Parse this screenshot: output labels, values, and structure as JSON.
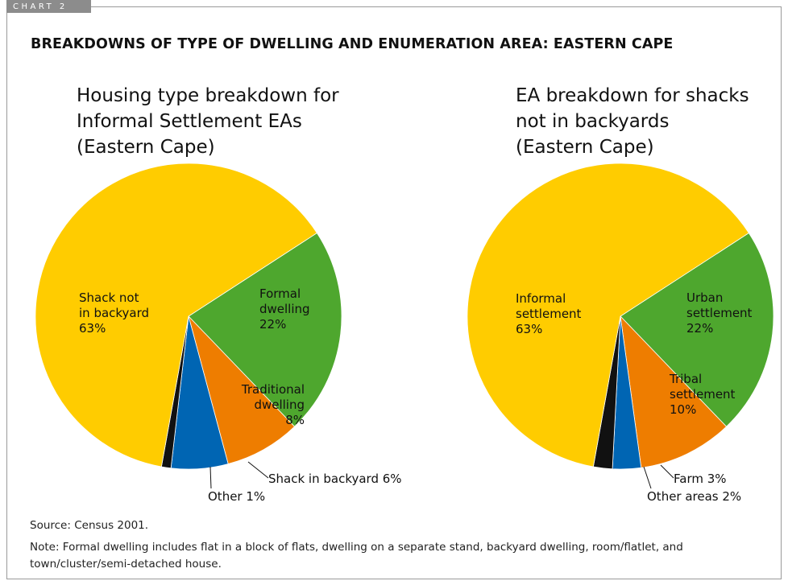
{
  "chart_tab": "CHART 2",
  "title": "BREAKDOWNS OF TYPE OF DWELLING AND ENUMERATION AREA: EASTERN CAPE",
  "chart_data": [
    {
      "type": "pie",
      "title": [
        "Housing type breakdown for",
        "Informal Settlement EAs",
        "(Eastern Cape)"
      ],
      "slices": [
        {
          "label": [
            "Formal",
            "dwelling",
            "22%"
          ],
          "value": 22,
          "color": "#4ea72e"
        },
        {
          "label": [
            "Traditional",
            "dwelling",
            "8%"
          ],
          "value": 8,
          "color": "#ee7d00"
        },
        {
          "label": [
            "Shack in backyard 6%"
          ],
          "value": 6,
          "color": "#0065b3"
        },
        {
          "label": [
            "Other 1%"
          ],
          "value": 1,
          "color": "#111111"
        },
        {
          "label": [
            "Shack not",
            "in backyard",
            "63%"
          ],
          "value": 63,
          "color": "#ffcc00"
        }
      ]
    },
    {
      "type": "pie",
      "title": [
        "EA breakdown for shacks",
        "not in backyards",
        "(Eastern Cape)"
      ],
      "slices": [
        {
          "label": [
            "Urban",
            "settlement",
            "22%"
          ],
          "value": 22,
          "color": "#4ea72e"
        },
        {
          "label": [
            "Tribal",
            "settlement",
            "10%"
          ],
          "value": 10,
          "color": "#ee7d00"
        },
        {
          "label": [
            "Farm 3%"
          ],
          "value": 3,
          "color": "#0065b3"
        },
        {
          "label": [
            "Other areas 2%"
          ],
          "value": 2,
          "color": "#111111"
        },
        {
          "label": [
            "Informal",
            "settlement",
            "63%"
          ],
          "value": 63,
          "color": "#ffcc00"
        }
      ]
    }
  ],
  "source": "Source: Census 2001.",
  "note": "Note: Formal dwelling includes flat in a block of flats, dwelling on a separate stand, backyard dwelling, room/flatlet, and town/cluster/semi-detached house."
}
